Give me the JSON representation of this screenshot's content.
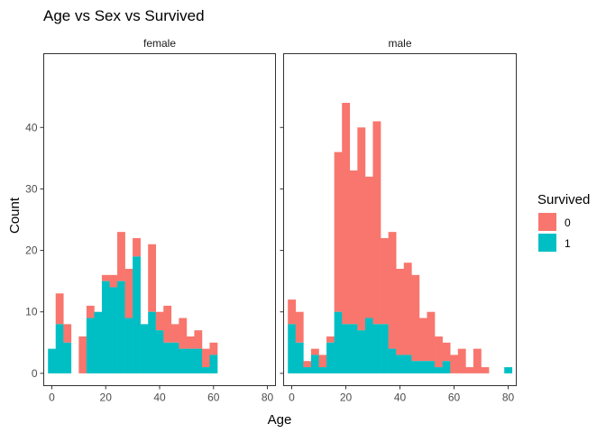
{
  "chart_data": {
    "type": "bar",
    "subtype": "stacked-histogram-faceted",
    "title": "Age vs Sex vs Survived",
    "xlabel": "Age",
    "ylabel": "Count",
    "xlim": [
      -3,
      83
    ],
    "ylim": [
      -2,
      52
    ],
    "x_ticks": [
      0,
      20,
      40,
      60,
      80
    ],
    "y_ticks": [
      0,
      10,
      20,
      30,
      40
    ],
    "bin_width": 2.857,
    "bin_start": -1.43,
    "grid": false,
    "legend": {
      "title": "Survived",
      "position": "right",
      "entries": [
        {
          "label": "0",
          "color": "#F8766D"
        },
        {
          "label": "1",
          "color": "#00BFC4"
        }
      ]
    },
    "facets": [
      {
        "label": "female",
        "survived_0": [
          0,
          5,
          3,
          0,
          6,
          2,
          0,
          1,
          2,
          8,
          8,
          3,
          0,
          11,
          3,
          6,
          3,
          5,
          2,
          3,
          3,
          2,
          0,
          0,
          0,
          0,
          0,
          0,
          0,
          0
        ],
        "survived_1": [
          4,
          8,
          5,
          0,
          0,
          9,
          10,
          15,
          14,
          15,
          9,
          19,
          8,
          10,
          7,
          5,
          5,
          4,
          4,
          4,
          1,
          3,
          0,
          0,
          0,
          0,
          0,
          0,
          0,
          0
        ]
      },
      {
        "label": "male",
        "survived_0": [
          4,
          5,
          1,
          1,
          2,
          1,
          26,
          36,
          25,
          33,
          23,
          33,
          14,
          19,
          14,
          15,
          14,
          7,
          8,
          5,
          3,
          3,
          4,
          1,
          4,
          1,
          0,
          0,
          0,
          0
        ],
        "survived_1": [
          8,
          5,
          1,
          3,
          1,
          5,
          10,
          8,
          8,
          7,
          9,
          8,
          8,
          4,
          3,
          3,
          2,
          2,
          2,
          1,
          2,
          0,
          0,
          0,
          0,
          0,
          0,
          0,
          1,
          0
        ]
      }
    ]
  }
}
